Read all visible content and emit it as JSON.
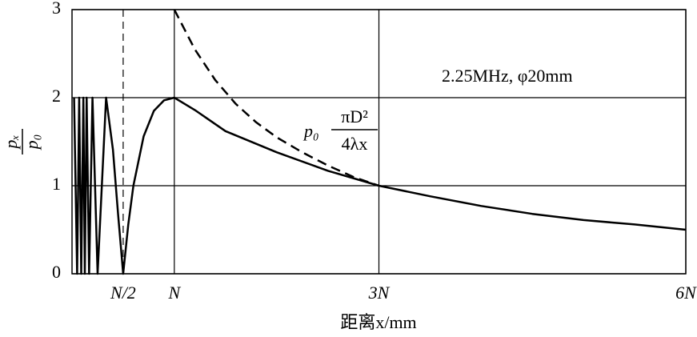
{
  "chart_data": {
    "type": "line",
    "xlabel": "距离x/mm",
    "ylabel": {
      "numerator": "pₓ",
      "denominator": "p₀"
    },
    "annotations": {
      "spec": "2.25MHz, φ20mm",
      "formula_prefix": "p₀",
      "formula_numerator": "πD²",
      "formula_denominator": "4λx"
    },
    "xlim": [
      0,
      6
    ],
    "ylim": [
      0,
      3
    ],
    "xticks": [
      {
        "value": 0.5,
        "label": "N/2",
        "style": "dashed"
      },
      {
        "value": 1,
        "label": "N",
        "style": "solid"
      },
      {
        "value": 3,
        "label": "3N",
        "style": "solid"
      },
      {
        "value": 6,
        "label": "6N",
        "style": "solid"
      }
    ],
    "yticks": [
      0,
      1,
      2,
      3
    ],
    "grid": true,
    "series": [
      {
        "color": "#000000",
        "dash": false,
        "x": [
          0.02,
          0.05,
          0.07,
          0.09,
          0.111,
          0.125,
          0.143,
          0.167,
          0.2,
          0.25,
          0.333,
          0.4,
          0.45,
          0.5,
          0.55,
          0.6,
          0.7,
          0.8,
          0.9,
          1,
          1.2,
          1.5,
          2,
          2.5,
          3,
          3.5,
          4,
          4.5,
          5,
          5.5,
          6
        ],
        "values": [
          2,
          0,
          2,
          0,
          2,
          0,
          2,
          0,
          2,
          0,
          2,
          1.41,
          0.68,
          0,
          0.56,
          1.0,
          1.56,
          1.85,
          1.97,
          2,
          1.86,
          1.62,
          1.38,
          1.17,
          1.0,
          0.88,
          0.77,
          0.68,
          0.61,
          0.56,
          0.5
        ]
      },
      {
        "color": "#000000",
        "dash": true,
        "x": [
          1,
          1.2,
          1.4,
          1.6,
          1.8,
          2,
          2.25,
          2.5,
          2.75,
          3
        ],
        "values": [
          3,
          2.55,
          2.2,
          1.93,
          1.72,
          1.55,
          1.38,
          1.23,
          1.1,
          1.0
        ]
      }
    ]
  }
}
